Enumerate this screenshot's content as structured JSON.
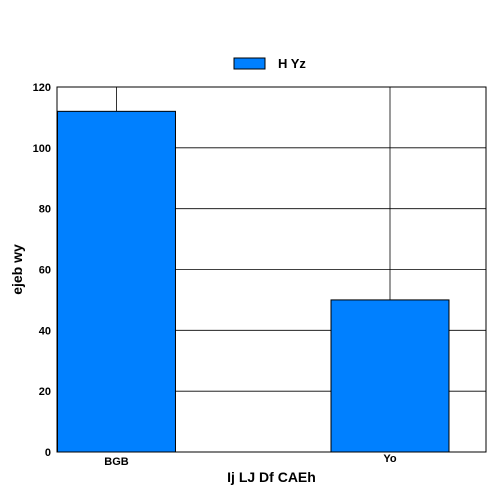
{
  "chart_data": {
    "type": "bar",
    "categories": [
      "BGB",
      "Yo"
    ],
    "series": [
      {
        "name": "H Yz",
        "values": [
          112,
          50
        ],
        "color": "#0080ff"
      }
    ],
    "xlabel": "Ij LJ Df CAEh",
    "ylabel": "ejeb wy",
    "ylim": [
      0,
      120
    ],
    "yticks": [
      0,
      20,
      40,
      60,
      80,
      100,
      120
    ],
    "grid": true,
    "legend": "top-center",
    "bar_edge_color": "#000000"
  }
}
